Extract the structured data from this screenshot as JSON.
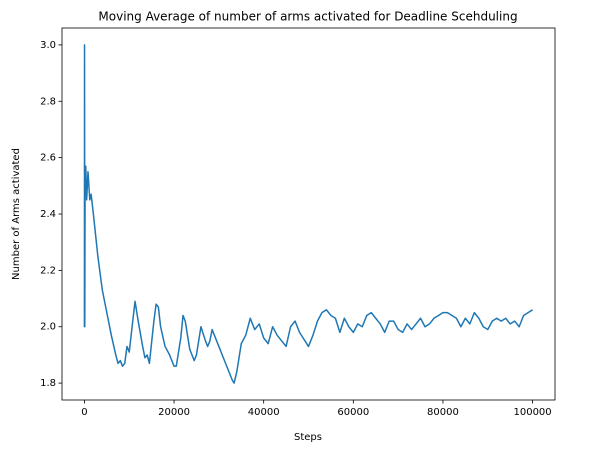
{
  "chart_data": {
    "type": "line",
    "title": "Moving Average of number of arms activated for Deadline Scehduling",
    "x_label": "Steps",
    "y_label": "Number of Arms activated",
    "x": [
      0,
      30,
      80,
      150,
      300,
      500,
      800,
      1200,
      1500,
      2000,
      3000,
      4000,
      5000,
      6000,
      7000,
      7500,
      8000,
      8500,
      9000,
      9500,
      10000,
      11000,
      11300,
      12000,
      13000,
      13500,
      14000,
      14500,
      15500,
      16000,
      16500,
      17000,
      18000,
      19000,
      20000,
      20500,
      21500,
      22000,
      22500,
      23500,
      24500,
      25000,
      26000,
      27000,
      27500,
      28000,
      28500,
      30000,
      31000,
      32000,
      33000,
      33400,
      34000,
      35000,
      36000,
      37000,
      38000,
      39000,
      40000,
      41000,
      42000,
      43000,
      44000,
      45000,
      46000,
      47000,
      48000,
      50000,
      51000,
      52000,
      53000,
      54000,
      55000,
      56000,
      57000,
      58000,
      59000,
      60000,
      61000,
      62000,
      63000,
      64000,
      65000,
      66000,
      67000,
      68000,
      69000,
      70000,
      71000,
      72000,
      73000,
      74000,
      75000,
      76000,
      77000,
      78000,
      79000,
      80000,
      81000,
      82000,
      83000,
      84000,
      85000,
      86000,
      87000,
      88000,
      89000,
      90000,
      91000,
      92000,
      93000,
      94000,
      95000,
      96000,
      97000,
      98000,
      99000,
      100000
    ],
    "series": [
      {
        "name": "Moving Average",
        "color": "#1f77b4",
        "values": [
          2.0,
          3.0,
          2.0,
          2.5,
          2.57,
          2.45,
          2.55,
          2.45,
          2.47,
          2.4,
          2.25,
          2.13,
          2.05,
          1.97,
          1.9,
          1.87,
          1.88,
          1.86,
          1.87,
          1.93,
          1.91,
          2.05,
          2.09,
          2.02,
          1.93,
          1.89,
          1.9,
          1.87,
          2.02,
          2.08,
          2.07,
          2.0,
          1.93,
          1.9,
          1.86,
          1.86,
          1.96,
          2.04,
          2.02,
          1.92,
          1.88,
          1.9,
          2.0,
          1.95,
          1.93,
          1.95,
          1.99,
          1.93,
          1.89,
          1.85,
          1.81,
          1.8,
          1.84,
          1.94,
          1.97,
          2.03,
          1.99,
          2.01,
          1.96,
          1.94,
          2.0,
          1.97,
          1.95,
          1.93,
          2.0,
          2.02,
          1.98,
          1.93,
          1.97,
          2.02,
          2.05,
          2.06,
          2.04,
          2.03,
          1.98,
          2.03,
          2.0,
          1.98,
          2.01,
          2.0,
          2.04,
          2.05,
          2.03,
          2.01,
          1.98,
          2.02,
          2.02,
          1.99,
          1.98,
          2.01,
          1.99,
          2.01,
          2.03,
          2.0,
          2.01,
          2.03,
          2.04,
          2.05,
          2.05,
          2.04,
          2.03,
          2.0,
          2.03,
          2.01,
          2.05,
          2.03,
          2.0,
          1.99,
          2.02,
          2.03,
          2.02,
          2.03,
          2.01,
          2.02,
          2.0,
          2.04,
          2.05,
          2.06
        ]
      }
    ],
    "xlim": [
      -5000,
      105000
    ],
    "ylim": [
      1.74,
      3.06
    ],
    "xticks": [
      0,
      20000,
      40000,
      60000,
      80000,
      100000
    ],
    "yticks": [
      1.8,
      {
        "value": 2,
        "label": "2.0"
      },
      2.2,
      2.4,
      2.6,
      2.8,
      {
        "value": 3,
        "label": "3.0"
      }
    ],
    "grid": false
  }
}
